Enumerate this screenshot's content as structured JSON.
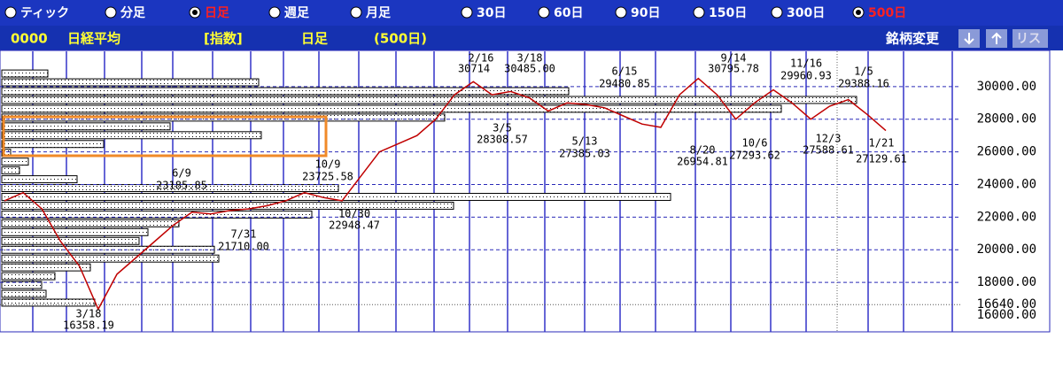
{
  "toolbar": {
    "periods": [
      {
        "label": "ティック",
        "selected": false
      },
      {
        "label": "分足",
        "selected": false
      },
      {
        "label": "日足",
        "selected": true
      },
      {
        "label": "週足",
        "selected": false
      },
      {
        "label": "月足",
        "selected": false
      }
    ],
    "ranges": [
      {
        "label": "30日",
        "selected": false
      },
      {
        "label": "60日",
        "selected": false
      },
      {
        "label": "90日",
        "selected": false
      },
      {
        "label": "150日",
        "selected": false
      },
      {
        "label": "300日",
        "selected": false
      },
      {
        "label": "500日",
        "selected": true
      }
    ]
  },
  "header": {
    "code": "0000",
    "name": "日経平均",
    "kind": "[指数]",
    "period": "日足",
    "range": "(500日)",
    "change_button": "銘柄変更",
    "list_button": "リス"
  },
  "chart_data": {
    "type": "line",
    "color": "#c00000",
    "categories": [
      null,
      null,
      null,
      null,
      null,
      null,
      null,
      null,
      null,
      null,
      null,
      null,
      null,
      null,
      null,
      null,
      null,
      null,
      null,
      null,
      null,
      null,
      null,
      null,
      null,
      null,
      null,
      null,
      null,
      null,
      null,
      null,
      null,
      null,
      null,
      null,
      null,
      null,
      null,
      null,
      null,
      null,
      null,
      null,
      null,
      null,
      null,
      null
    ],
    "values": [
      23000,
      23500,
      22500,
      20500,
      19000,
      16358,
      18500,
      19500,
      20500,
      21500,
      22300,
      22200,
      22400,
      22500,
      22700,
      23000,
      23500,
      23200,
      23000,
      24500,
      26000,
      26500,
      27000,
      28000,
      29500,
      30300,
      29500,
      29700,
      29300,
      28500,
      29000,
      28900,
      28700,
      28200,
      27700,
      27500,
      29500,
      30500,
      29500,
      28000,
      29000,
      29800,
      29000,
      28000,
      28800,
      29200,
      28300,
      27300
    ],
    "ylim": [
      14970,
      32160
    ],
    "yticks": [
      {
        "value": 30000,
        "label": "30000.00"
      },
      {
        "value": 28000,
        "label": "28000.00"
      },
      {
        "value": 26000,
        "label": "26000.00"
      },
      {
        "value": 24000,
        "label": "24000.00"
      },
      {
        "value": 22000,
        "label": "22000.00"
      },
      {
        "value": 20000,
        "label": "20000.00"
      },
      {
        "value": 18000,
        "label": "18000.00"
      },
      {
        "value": 16640,
        "label": "16640.00"
      },
      {
        "value": 16000,
        "label": "16000.00"
      }
    ],
    "grid": true,
    "annotations": [
      {
        "date": "3/18",
        "price": "16358.19"
      },
      {
        "date": "6/9",
        "price": "23185.85"
      },
      {
        "date": "7/31",
        "price": "21710.00"
      },
      {
        "date": "10/9",
        "price": "23725.58"
      },
      {
        "date": "10/30",
        "price": "22948.47"
      },
      {
        "date": "2/16",
        "price": "30714"
      },
      {
        "date": "3/18",
        "price": "30485.00"
      },
      {
        "date": "3/5",
        "price": "28308.57"
      },
      {
        "date": "6/15",
        "price": "29480.85"
      },
      {
        "date": "5/13",
        "price": "27385.03"
      },
      {
        "date": "9/14",
        "price": "30795.78"
      },
      {
        "date": "8/20",
        "price": "26954.81"
      },
      {
        "date": "10/6",
        "price": "27293.62"
      },
      {
        "date": "11/16",
        "price": "29960.93"
      },
      {
        "date": "12/3",
        "price": "27588.61"
      },
      {
        "date": "1/5",
        "price": "29388.16"
      },
      {
        "date": "1/21",
        "price": "27129.61"
      }
    ],
    "volume_profile": {
      "levels": [
        30800,
        30260,
        29720,
        29180,
        28640,
        28100,
        27560,
        27020,
        26480,
        25940,
        25400,
        24860,
        24320,
        23780,
        23240,
        22700,
        22160,
        21620,
        21080,
        20540,
        20000,
        19460,
        18920,
        18380,
        17840,
        17300,
        16760
      ],
      "values": [
        52,
        290,
        640,
        965,
        880,
        500,
        190,
        293,
        115,
        10,
        30,
        20,
        85,
        380,
        755,
        510,
        350,
        200,
        165,
        155,
        240,
        245,
        100,
        60,
        45,
        50,
        105
      ]
    }
  }
}
